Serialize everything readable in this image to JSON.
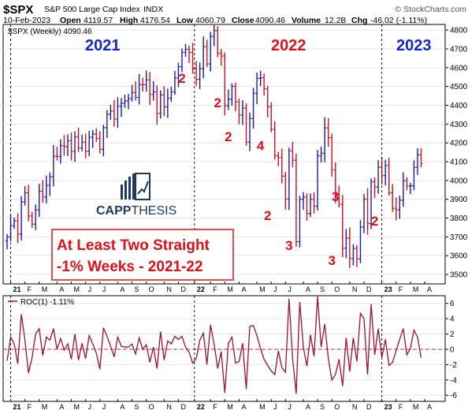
{
  "header": {
    "symbol": "$SPX",
    "name": "S&P 500 Large Cap Index",
    "exchange": "INDX",
    "date": "10-Feb-2023",
    "open_label": "Open",
    "open": "4119.57",
    "high_label": "High",
    "high": "4176.54",
    "low_label": "Low",
    "low": "4060.79",
    "close_label": "Close",
    "close": "4090.46",
    "volume_label": "Volume",
    "volume": "12.2B",
    "chg_label": "Chg",
    "chg": "-46.02 (-1.11%)",
    "attribution": "© StockCharts.com"
  },
  "legend": {
    "price": "$SPX (Weekly) 4090.46",
    "roc": "ROC(1) -1.11%"
  },
  "years": [
    "2021",
    "2022",
    "2023"
  ],
  "logo_text": {
    "part1": "CAPP",
    "part2": "THESIS"
  },
  "callout": {
    "line1": "At Least Two Straight",
    "line2": "-1% Weeks - 2021-22"
  },
  "colors": {
    "up": "#1a1aa8",
    "down": "#cc1020",
    "year_blue": "#1428c8",
    "year_red": "#e0101a",
    "roc_line": "#a01030",
    "logo": "#1f3a5f",
    "callout_border": "#e0101a",
    "callout_text": "#e0101a"
  },
  "chart_data": [
    {
      "type": "ohlc",
      "title": "$SPX (Weekly) 4090.46",
      "ylim": [
        3450,
        4830
      ],
      "y_ticks": [
        3500,
        3600,
        3700,
        3800,
        3900,
        4000,
        4100,
        4200,
        4300,
        4400,
        4500,
        4600,
        4700,
        4800
      ],
      "x_tick_labels": [
        "21",
        "F",
        "M",
        "A",
        "M",
        "J",
        "J",
        "A",
        "S",
        "O",
        "N",
        "D",
        "22",
        "F",
        "M",
        "A",
        "M",
        "J",
        "J",
        "A",
        "S",
        "O",
        "N",
        "D",
        "23",
        "F",
        "M",
        "A"
      ],
      "closes": [
        3700,
        3760,
        3785,
        3715,
        3886,
        3934,
        3811,
        3768,
        3843,
        3943,
        3913,
        3974,
        4020,
        4129,
        4128,
        4185,
        4180,
        4211,
        4155,
        4232,
        4173,
        4204,
        4156,
        4230,
        4247,
        4224,
        4166,
        4281,
        4352,
        4369,
        4327,
        4395,
        4411,
        4423,
        4436,
        4468,
        4442,
        4510,
        4509,
        4535,
        4458,
        4471,
        4357,
        4455,
        4391,
        4438,
        4471,
        4545,
        4605,
        4682,
        4698,
        4681,
        4595,
        4538,
        4594,
        4712,
        4620,
        4766,
        4797,
        4677,
        4662,
        4398,
        4432,
        4501,
        4418,
        4349,
        4385,
        4204,
        4329,
        4463,
        4543,
        4546,
        4488,
        4392,
        4272,
        4131,
        4123,
        4023,
        3901,
        4158,
        4108,
        3674,
        3900,
        3911,
        3825,
        3899,
        3863,
        4131,
        4145,
        4280,
        4228,
        4057,
        3924,
        3873,
        3640,
        3693,
        3585,
        3639,
        3583,
        3752,
        3901,
        3771,
        3993,
        3965,
        4071,
        4026,
        4080,
        3934,
        3852,
        3844,
        3895,
        3999,
        3970,
        3972,
        4070,
        4136,
        4090
      ],
      "annotations": [
        "2",
        "2",
        "2",
        "4",
        "2",
        "3",
        "3",
        "3",
        "2"
      ]
    },
    {
      "type": "line",
      "title": "ROC(1) -1.11%",
      "ylim": [
        -6.8,
        7
      ],
      "y_ticks": [
        -6,
        -4,
        -2,
        0,
        2,
        4,
        6
      ],
      "x_tick_labels": [
        "21",
        "F",
        "M",
        "A",
        "M",
        "J",
        "J",
        "A",
        "S",
        "O",
        "N",
        "D",
        "22",
        "F",
        "M",
        "A",
        "M",
        "J",
        "J",
        "A",
        "S",
        "O",
        "N",
        "D",
        "23",
        "F",
        "M",
        "A"
      ],
      "values": [
        -1.5,
        1.6,
        0.7,
        -1.9,
        4.6,
        1.2,
        -3.1,
        -1.1,
        2.0,
        2.7,
        -0.8,
        1.6,
        1.2,
        2.7,
        0.0,
        1.4,
        -0.1,
        0.7,
        -1.3,
        2.0,
        -1.4,
        0.8,
        -1.2,
        1.8,
        0.7,
        -0.5,
        -2.6,
        2.8,
        1.7,
        0.4,
        -1.0,
        1.6,
        0.4,
        0.3,
        0.3,
        0.7,
        -0.6,
        1.5,
        0.0,
        0.6,
        -1.7,
        0.3,
        -2.5,
        2.3,
        -1.4,
        1.1,
        0.7,
        1.7,
        1.3,
        1.7,
        0.3,
        -0.4,
        -1.8,
        -1.2,
        1.2,
        2.1,
        -2.0,
        3.2,
        0.7,
        -2.5,
        -0.3,
        -5.7,
        0.8,
        1.6,
        -1.8,
        -1.6,
        0.8,
        -5.2,
        3.0,
        3.1,
        1.8,
        0.1,
        -1.3,
        -2.1,
        -2.8,
        -3.3,
        -0.2,
        -2.4,
        -3.0,
        6.6,
        -1.2,
        -5.8,
        6.2,
        0.3,
        -2.2,
        1.9,
        -0.9,
        6.9,
        0.3,
        3.3,
        -1.2,
        -4.0,
        -3.3,
        -1.3,
        -4.8,
        1.5,
        -2.9,
        1.5,
        -1.6,
        4.7,
        4.0,
        -3.3,
        5.9,
        -0.7,
        2.7,
        -1.1,
        1.3,
        -2.1,
        -1.7,
        -0.2,
        1.3,
        2.7,
        -0.7,
        0.1,
        2.5,
        1.6,
        -1.1
      ],
      "reference_line": 0
    }
  ]
}
